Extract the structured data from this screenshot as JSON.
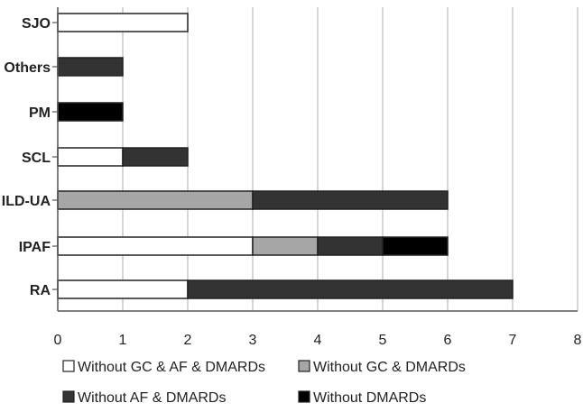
{
  "chart_data": {
    "type": "bar",
    "orientation": "horizontal",
    "stacked": true,
    "categories": [
      "RA",
      "IPAF",
      "ILD-UA",
      "SCL",
      "PM",
      "Others",
      "SJO"
    ],
    "series": [
      {
        "name": "Without GC & AF & DMARDs",
        "color": "#ffffff",
        "values": [
          2,
          3,
          0,
          1,
          0,
          0,
          2
        ]
      },
      {
        "name": "Without GC & DMARDs",
        "color": "#a6a6a6",
        "values": [
          0,
          1,
          3,
          0,
          0,
          0,
          0
        ]
      },
      {
        "name": "Without AF & DMARDs",
        "color": "#333333",
        "values": [
          5,
          1,
          3,
          1,
          0,
          1,
          0
        ]
      },
      {
        "name": "Without DMARDs",
        "color": "#000000",
        "values": [
          0,
          1,
          0,
          0,
          1,
          0,
          0
        ]
      }
    ],
    "xlim": [
      0,
      8
    ],
    "xticks": [
      "0",
      "1",
      "2",
      "3",
      "4",
      "5",
      "6",
      "7",
      "8"
    ],
    "grid": "vertical",
    "legend": "bottom"
  }
}
